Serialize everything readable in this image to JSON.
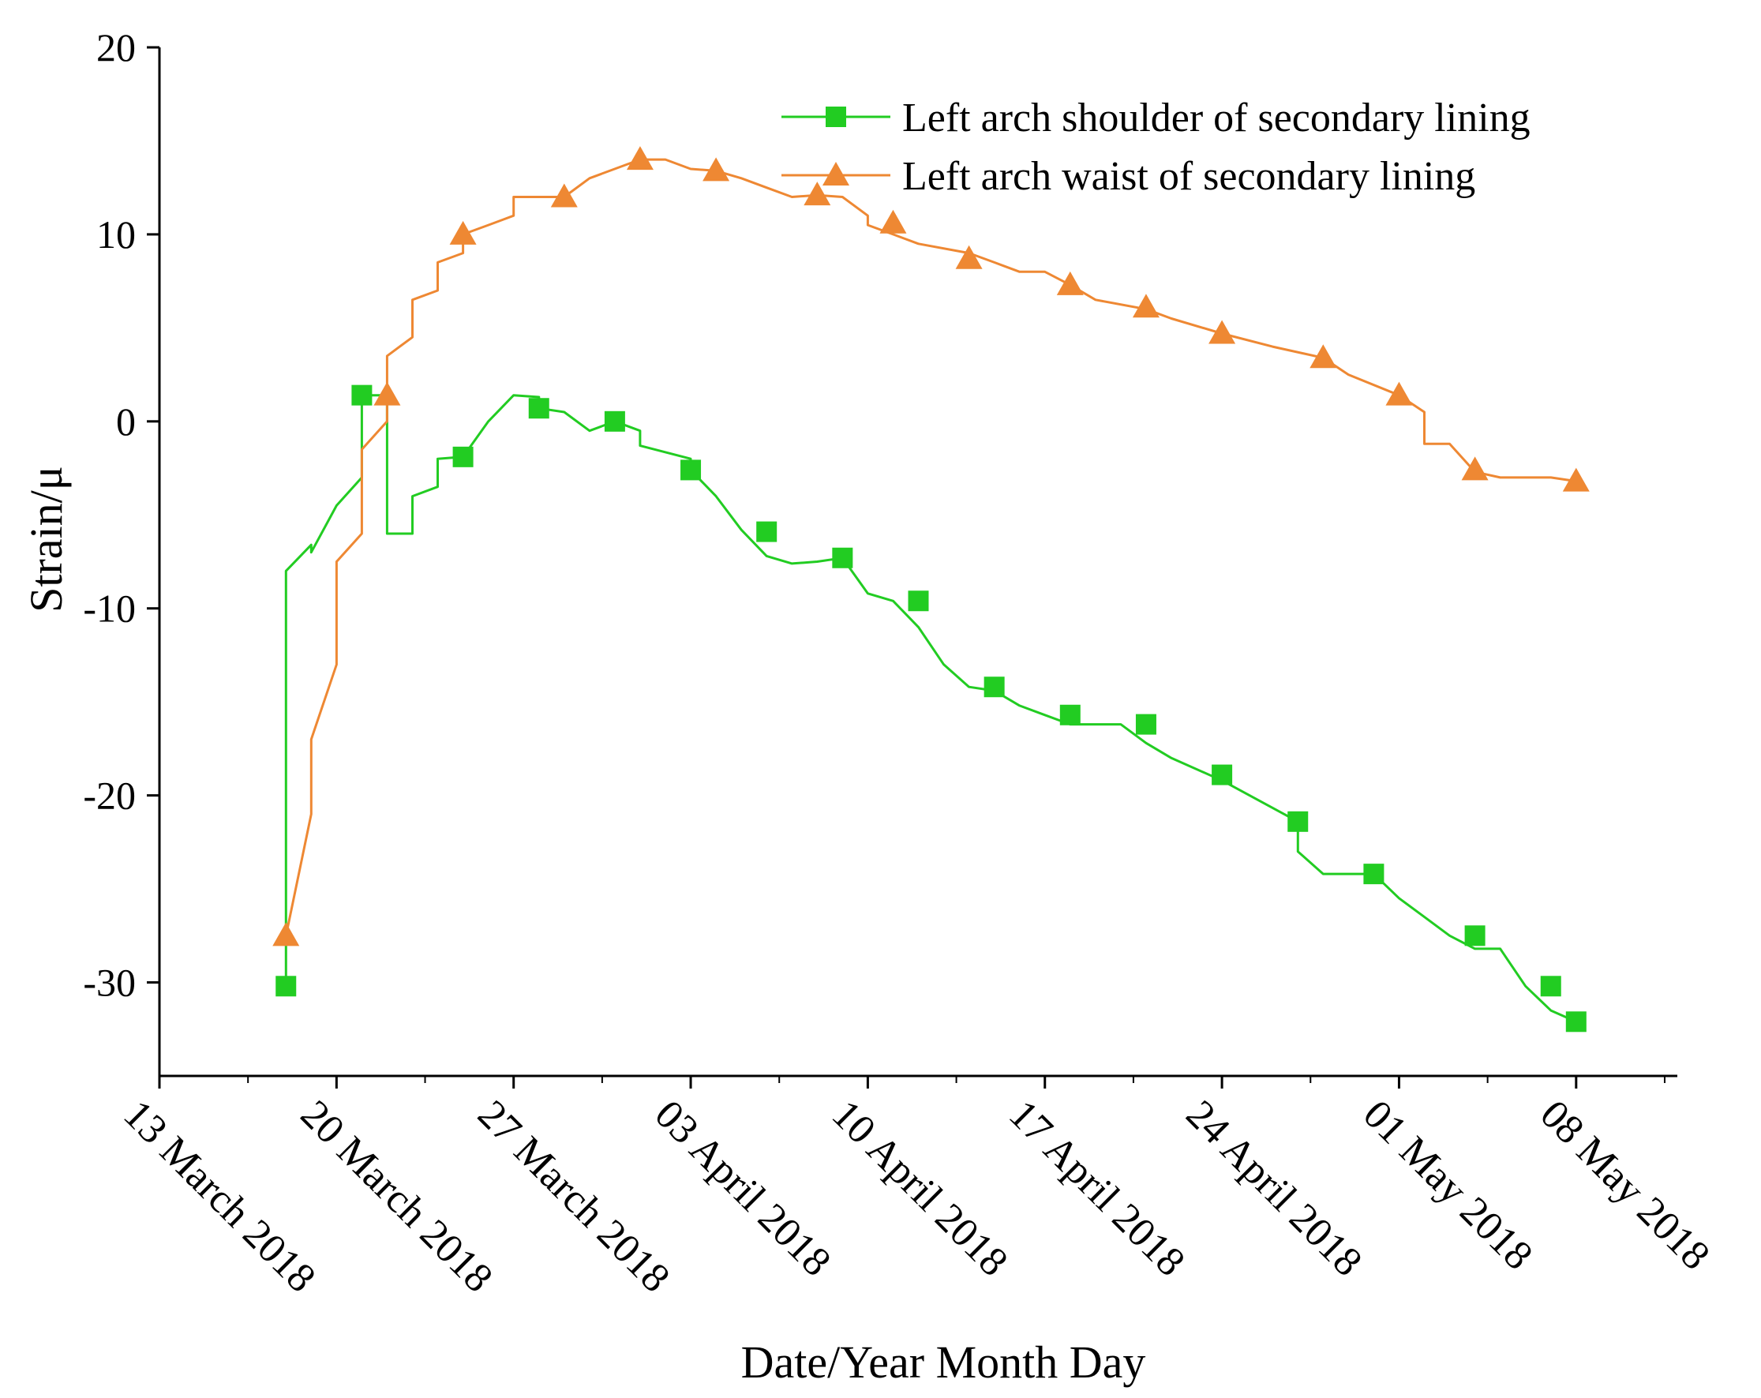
{
  "chart_data": {
    "type": "line",
    "xlabel": "Date/Year Month Day",
    "ylabel": "Strain/μ",
    "x_axis": {
      "kind": "date",
      "range": [
        "2018-03-13",
        "2018-05-12"
      ],
      "ticks": [
        "2018-03-13",
        "2018-03-20",
        "2018-03-27",
        "2018-04-03",
        "2018-04-10",
        "2018-04-17",
        "2018-04-24",
        "2018-05-01",
        "2018-05-08"
      ],
      "tick_labels": [
        "13 March 2018",
        "20 March 2018",
        "27 March 2018",
        "03 April 2018",
        "10 April 2018",
        "17 April 2018",
        "24 April 2018",
        "01 May 2018",
        "08 May 2018"
      ]
    },
    "y_axis": {
      "range": [
        -35,
        20
      ],
      "ticks": [
        -30,
        -20,
        -10,
        0,
        10,
        20
      ],
      "tick_labels": [
        "-30",
        "-20",
        "-10",
        "0",
        "10",
        "20"
      ]
    },
    "grid": false,
    "legend_position": "top-right",
    "series": [
      {
        "name": "Left arch shoulder of secondary lining",
        "color": "#22cc22",
        "marker": "square",
        "line": [
          [
            "2018-03-18",
            -30.2
          ],
          [
            "2018-03-18",
            -8.0
          ],
          [
            "2018-03-19",
            -6.6
          ],
          [
            "2018-03-19",
            -7.0
          ],
          [
            "2018-03-20",
            -4.5
          ],
          [
            "2018-03-21",
            -3.0
          ],
          [
            "2018-03-21",
            1.4
          ],
          [
            "2018-03-22",
            1.4
          ],
          [
            "2018-03-22",
            -6.0
          ],
          [
            "2018-03-23",
            -6.0
          ],
          [
            "2018-03-23",
            -4.0
          ],
          [
            "2018-03-24",
            -3.5
          ],
          [
            "2018-03-24",
            -2.0
          ],
          [
            "2018-03-25",
            -1.9
          ],
          [
            "2018-03-26",
            0.0
          ],
          [
            "2018-03-27",
            1.4
          ],
          [
            "2018-03-28",
            1.3
          ],
          [
            "2018-03-28",
            0.7
          ],
          [
            "2018-03-29",
            0.5
          ],
          [
            "2018-03-30",
            -0.5
          ],
          [
            "2018-03-31",
            0.0
          ],
          [
            "2018-04-01",
            -0.5
          ],
          [
            "2018-04-01",
            -1.3
          ],
          [
            "2018-04-03",
            -2.0
          ],
          [
            "2018-04-03",
            -2.6
          ],
          [
            "2018-04-04",
            -4.0
          ],
          [
            "2018-04-05",
            -5.8
          ],
          [
            "2018-04-06",
            -7.2
          ],
          [
            "2018-04-07",
            -7.6
          ],
          [
            "2018-04-08",
            -7.5
          ],
          [
            "2018-04-09",
            -7.3
          ],
          [
            "2018-04-10",
            -9.2
          ],
          [
            "2018-04-11",
            -9.6
          ],
          [
            "2018-04-12",
            -11.0
          ],
          [
            "2018-04-13",
            -13.0
          ],
          [
            "2018-04-14",
            -14.2
          ],
          [
            "2018-04-15",
            -14.4
          ],
          [
            "2018-04-16",
            -15.2
          ],
          [
            "2018-04-17",
            -15.7
          ],
          [
            "2018-04-18",
            -16.2
          ],
          [
            "2018-04-20",
            -16.2
          ],
          [
            "2018-04-21",
            -17.2
          ],
          [
            "2018-04-22",
            -18.0
          ],
          [
            "2018-04-24",
            -19.2
          ],
          [
            "2018-04-27",
            -21.4
          ],
          [
            "2018-04-27",
            -23.0
          ],
          [
            "2018-04-28",
            -24.2
          ],
          [
            "2018-04-30",
            -24.2
          ],
          [
            "2018-05-01",
            -25.5
          ],
          [
            "2018-05-02",
            -26.5
          ],
          [
            "2018-05-03",
            -27.5
          ],
          [
            "2018-05-04",
            -28.2
          ],
          [
            "2018-05-05",
            -28.2
          ],
          [
            "2018-05-06",
            -30.2
          ],
          [
            "2018-05-07",
            -31.5
          ],
          [
            "2018-05-08",
            -32.1
          ]
        ],
        "markers": [
          [
            "2018-03-18",
            -30.2
          ],
          [
            "2018-03-21",
            1.4
          ],
          [
            "2018-03-25",
            -1.9
          ],
          [
            "2018-03-28",
            0.7
          ],
          [
            "2018-03-31",
            0.0
          ],
          [
            "2018-04-03",
            -2.6
          ],
          [
            "2018-04-06",
            -5.9
          ],
          [
            "2018-04-09",
            -7.3
          ],
          [
            "2018-04-12",
            -9.6
          ],
          [
            "2018-04-15",
            -14.2
          ],
          [
            "2018-04-18",
            -15.7
          ],
          [
            "2018-04-21",
            -16.2
          ],
          [
            "2018-04-24",
            -18.9
          ],
          [
            "2018-04-27",
            -21.4
          ],
          [
            "2018-04-30",
            -24.2
          ],
          [
            "2018-05-04",
            -27.5
          ],
          [
            "2018-05-07",
            -30.2
          ],
          [
            "2018-05-08",
            -32.1
          ]
        ]
      },
      {
        "name": "Left arch waist of secondary lining",
        "color": "#ee8833",
        "marker": "triangle",
        "line": [
          [
            "2018-03-18",
            -27.5
          ],
          [
            "2018-03-19",
            -21.0
          ],
          [
            "2018-03-19",
            -17.0
          ],
          [
            "2018-03-20",
            -13.0
          ],
          [
            "2018-03-20",
            -7.5
          ],
          [
            "2018-03-21",
            -6.0
          ],
          [
            "2018-03-21",
            -1.5
          ],
          [
            "2018-03-22",
            0.0
          ],
          [
            "2018-03-22",
            3.5
          ],
          [
            "2018-03-23",
            4.5
          ],
          [
            "2018-03-23",
            6.5
          ],
          [
            "2018-03-24",
            7.0
          ],
          [
            "2018-03-24",
            8.5
          ],
          [
            "2018-03-25",
            9.0
          ],
          [
            "2018-03-25",
            10.0
          ],
          [
            "2018-03-26",
            10.5
          ],
          [
            "2018-03-27",
            11.0
          ],
          [
            "2018-03-27",
            12.0
          ],
          [
            "2018-03-29",
            12.0
          ],
          [
            "2018-03-30",
            13.0
          ],
          [
            "2018-04-01",
            14.0
          ],
          [
            "2018-04-02",
            14.0
          ],
          [
            "2018-04-03",
            13.5
          ],
          [
            "2018-04-04",
            13.4
          ],
          [
            "2018-04-05",
            13.0
          ],
          [
            "2018-04-06",
            12.5
          ],
          [
            "2018-04-07",
            12.0
          ],
          [
            "2018-04-08",
            12.1
          ],
          [
            "2018-04-09",
            12.0
          ],
          [
            "2018-04-10",
            11.0
          ],
          [
            "2018-04-10",
            10.5
          ],
          [
            "2018-04-11",
            10.0
          ],
          [
            "2018-04-12",
            9.5
          ],
          [
            "2018-04-14",
            9.0
          ],
          [
            "2018-04-15",
            8.5
          ],
          [
            "2018-04-16",
            8.0
          ],
          [
            "2018-04-17",
            8.0
          ],
          [
            "2018-04-18",
            7.3
          ],
          [
            "2018-04-19",
            6.5
          ],
          [
            "2018-04-21",
            6.0
          ],
          [
            "2018-04-22",
            5.5
          ],
          [
            "2018-04-24",
            4.7
          ],
          [
            "2018-04-26",
            4.0
          ],
          [
            "2018-04-28",
            3.4
          ],
          [
            "2018-04-29",
            2.5
          ],
          [
            "2018-05-01",
            1.4
          ],
          [
            "2018-05-02",
            0.5
          ],
          [
            "2018-05-02",
            -1.2
          ],
          [
            "2018-05-03",
            -1.2
          ],
          [
            "2018-05-04",
            -2.7
          ],
          [
            "2018-05-05",
            -3.0
          ],
          [
            "2018-05-06",
            -3.0
          ],
          [
            "2018-05-07",
            -3.0
          ],
          [
            "2018-05-08",
            -3.2
          ]
        ],
        "markers": [
          [
            "2018-03-18",
            -27.5
          ],
          [
            "2018-03-22",
            1.4
          ],
          [
            "2018-03-25",
            10.0
          ],
          [
            "2018-03-29",
            12.0
          ],
          [
            "2018-04-01",
            14.0
          ],
          [
            "2018-04-04",
            13.4
          ],
          [
            "2018-04-08",
            12.1
          ],
          [
            "2018-04-11",
            10.6
          ],
          [
            "2018-04-14",
            8.7
          ],
          [
            "2018-04-18",
            7.3
          ],
          [
            "2018-04-21",
            6.1
          ],
          [
            "2018-04-24",
            4.7
          ],
          [
            "2018-04-28",
            3.4
          ],
          [
            "2018-05-01",
            1.4
          ],
          [
            "2018-05-04",
            -2.6
          ],
          [
            "2018-05-08",
            -3.2
          ]
        ]
      }
    ]
  }
}
